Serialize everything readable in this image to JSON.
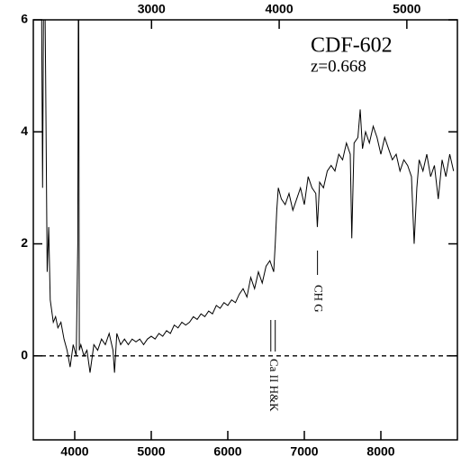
{
  "chart_data": {
    "type": "line",
    "title": "CDF-602",
    "subtitle": "z=0.668",
    "x": [
      3560,
      3580,
      3600,
      3620,
      3640,
      3660,
      3680,
      3700,
      3720,
      3750,
      3780,
      3820,
      3860,
      3900,
      3940,
      3980,
      4020,
      4040,
      4050,
      4060,
      4080,
      4120,
      4160,
      4200,
      4250,
      4300,
      4350,
      4400,
      4450,
      4500,
      4520,
      4550,
      4600,
      4650,
      4700,
      4750,
      4800,
      4850,
      4900,
      4950,
      5000,
      5050,
      5100,
      5150,
      5200,
      5250,
      5300,
      5350,
      5400,
      5450,
      5500,
      5550,
      5600,
      5650,
      5700,
      5750,
      5800,
      5850,
      5900,
      5950,
      6000,
      6050,
      6100,
      6150,
      6200,
      6250,
      6300,
      6350,
      6400,
      6450,
      6500,
      6550,
      6600,
      6620,
      6640,
      6660,
      6700,
      6750,
      6800,
      6850,
      6900,
      6950,
      7000,
      7050,
      7100,
      7150,
      7170,
      7200,
      7250,
      7300,
      7350,
      7400,
      7450,
      7500,
      7550,
      7600,
      7620,
      7650,
      7700,
      7730,
      7760,
      7800,
      7850,
      7900,
      7950,
      8000,
      8050,
      8100,
      8150,
      8200,
      8250,
      8300,
      8350,
      8400,
      8435,
      8470,
      8500,
      8550,
      8600,
      8650,
      8700,
      8750,
      8800,
      8850,
      8900,
      8950
    ],
    "series": [
      {
        "color": "#000000",
        "values": [
          8,
          3,
          8,
          5,
          1.5,
          2.3,
          1.0,
          0.8,
          0.6,
          0.7,
          0.5,
          0.6,
          0.3,
          0.1,
          -0.2,
          0.2,
          0.0,
          2.0,
          8,
          0.1,
          0.2,
          0.0,
          0.1,
          -0.3,
          0.2,
          0.1,
          0.3,
          0.2,
          0.4,
          0.1,
          -0.3,
          0.4,
          0.2,
          0.3,
          0.2,
          0.3,
          0.25,
          0.3,
          0.2,
          0.3,
          0.35,
          0.3,
          0.4,
          0.35,
          0.45,
          0.4,
          0.55,
          0.5,
          0.6,
          0.55,
          0.6,
          0.7,
          0.65,
          0.75,
          0.7,
          0.8,
          0.75,
          0.9,
          0.85,
          0.95,
          0.9,
          1.0,
          0.95,
          1.1,
          1.2,
          1.05,
          1.4,
          1.2,
          1.5,
          1.3,
          1.6,
          1.7,
          1.5,
          2.0,
          2.6,
          3.0,
          2.8,
          2.7,
          2.9,
          2.6,
          2.8,
          3.0,
          2.7,
          3.2,
          3.0,
          2.9,
          2.3,
          3.1,
          3.0,
          3.3,
          3.4,
          3.3,
          3.6,
          3.5,
          3.8,
          3.6,
          2.1,
          3.8,
          3.9,
          4.4,
          3.7,
          4.0,
          3.8,
          4.1,
          3.9,
          3.6,
          3.9,
          3.7,
          3.5,
          3.6,
          3.3,
          3.5,
          3.4,
          3.2,
          2.0,
          3.0,
          3.5,
          3.3,
          3.6,
          3.2,
          3.4,
          2.8,
          3.5,
          3.2,
          3.6,
          3.3
        ]
      }
    ],
    "xlim": [
      3459,
      9000
    ],
    "xticks": [
      4000,
      5000,
      6000,
      7000,
      8000
    ],
    "x2lim": [
      2074,
      5396
    ],
    "x2ticks": [
      3000,
      4000,
      5000
    ],
    "ylim": [
      -1.5,
      6
    ],
    "yticks": [
      0,
      2,
      4,
      6
    ],
    "hline": 0,
    "annotations": [
      {
        "text": "Ca II H&K",
        "x": [
          6562,
          6620
        ]
      },
      {
        "text": "CH G",
        "x": [
          7172
        ]
      }
    ]
  }
}
